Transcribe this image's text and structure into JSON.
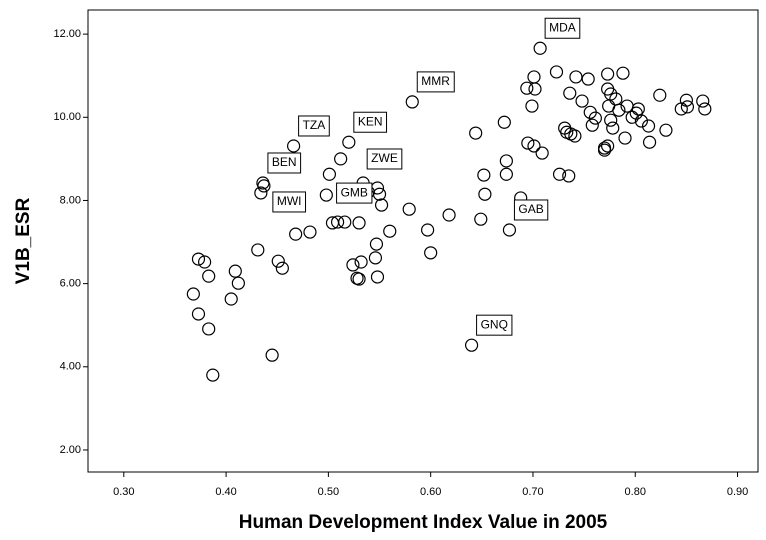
{
  "chart_data": {
    "type": "scatter",
    "xlabel": "Human Development Index Value in 2005",
    "ylabel": "V1B_ESR",
    "color": "#000000",
    "xlim": [
      0.265,
      0.92
    ],
    "ylim": [
      1.47,
      12.58
    ],
    "xticks": [
      {
        "value": 0.3,
        "label": "0.30"
      },
      {
        "value": 0.4,
        "label": "0.40"
      },
      {
        "value": 0.5,
        "label": "0.50"
      },
      {
        "value": 0.6,
        "label": "0.60"
      },
      {
        "value": 0.7,
        "label": "0.70"
      },
      {
        "value": 0.8,
        "label": "0.80"
      },
      {
        "value": 0.9,
        "label": "0.90"
      }
    ],
    "yticks": [
      {
        "value": 2,
        "label": "2.00"
      },
      {
        "value": 4,
        "label": "4.00"
      },
      {
        "value": 6,
        "label": "6.00"
      },
      {
        "value": 8,
        "label": "8.00"
      },
      {
        "value": 10,
        "label": "10.00"
      },
      {
        "value": 12,
        "label": "12.00"
      }
    ],
    "x": [
      0.373,
      0.379,
      0.383,
      0.368,
      0.373,
      0.383,
      0.387,
      0.409,
      0.412,
      0.405,
      0.431,
      0.451,
      0.455,
      0.445,
      0.436,
      0.437,
      0.434,
      0.468,
      0.482,
      0.466,
      0.52,
      0.512,
      0.501,
      0.498,
      0.504,
      0.509,
      0.516,
      0.53,
      0.534,
      0.539,
      0.548,
      0.55,
      0.552,
      0.56,
      0.524,
      0.532,
      0.528,
      0.53,
      0.547,
      0.546,
      0.548,
      0.579,
      0.582,
      0.597,
      0.6,
      0.618,
      0.644,
      0.652,
      0.653,
      0.649,
      0.64,
      0.672,
      0.674,
      0.674,
      0.677,
      0.688,
      0.707,
      0.694,
      0.701,
      0.702,
      0.699,
      0.695,
      0.701,
      0.709,
      0.723,
      0.726,
      0.735,
      0.731,
      0.733,
      0.737,
      0.741,
      0.736,
      0.742,
      0.748,
      0.754,
      0.756,
      0.758,
      0.761,
      0.77,
      0.77,
      0.773,
      0.774,
      0.776,
      0.776,
      0.778,
      0.773,
      0.781,
      0.784,
      0.788,
      0.79,
      0.792,
      0.797,
      0.801,
      0.803,
      0.806,
      0.813,
      0.814,
      0.824,
      0.83,
      0.845,
      0.85,
      0.851,
      0.866,
      0.868,
      0.773
    ],
    "y": [
      6.59,
      6.52,
      6.18,
      5.75,
      5.27,
      4.91,
      3.8,
      6.3,
      6.01,
      5.63,
      6.81,
      6.54,
      6.37,
      4.28,
      8.42,
      8.35,
      8.18,
      7.19,
      7.24,
      9.31,
      9.4,
      9.0,
      8.63,
      8.13,
      7.46,
      7.48,
      7.48,
      7.46,
      8.42,
      8.2,
      8.3,
      8.15,
      7.89,
      7.26,
      6.45,
      6.52,
      6.13,
      6.11,
      6.95,
      6.62,
      6.16,
      7.79,
      10.37,
      7.29,
      6.74,
      7.65,
      9.62,
      8.61,
      8.15,
      7.55,
      4.52,
      9.88,
      8.95,
      8.63,
      7.29,
      8.06,
      11.66,
      10.7,
      10.97,
      10.68,
      10.27,
      9.38,
      9.31,
      9.14,
      11.09,
      8.63,
      8.59,
      9.74,
      9.64,
      9.6,
      9.55,
      10.58,
      10.97,
      10.39,
      10.92,
      10.12,
      9.81,
      9.98,
      9.26,
      9.21,
      11.04,
      10.27,
      10.56,
      9.93,
      9.74,
      10.68,
      10.44,
      10.17,
      11.06,
      9.5,
      10.27,
      10.0,
      10.1,
      10.2,
      9.91,
      9.79,
      9.4,
      10.53,
      9.69,
      10.2,
      10.41,
      10.25,
      10.39,
      10.2,
      9.31
    ],
    "point_labels": [
      null,
      null,
      null,
      null,
      null,
      null,
      null,
      null,
      null,
      null,
      null,
      null,
      null,
      null,
      "BEN",
      null,
      "MWI",
      null,
      null,
      "TZA",
      "KEN",
      null,
      null,
      null,
      null,
      "GMB",
      null,
      null,
      "ZWE",
      null,
      null,
      null,
      null,
      null,
      null,
      null,
      null,
      null,
      null,
      null,
      null,
      null,
      "MMR",
      null,
      null,
      null,
      null,
      null,
      null,
      null,
      "GNQ",
      null,
      null,
      null,
      "GAB",
      null,
      "MDA",
      null,
      null,
      null,
      null,
      null,
      null,
      null,
      null,
      null,
      null,
      null,
      null,
      null,
      null,
      null,
      null,
      null,
      null,
      null,
      null,
      null,
      null,
      null,
      null,
      null,
      null,
      null,
      null,
      null,
      null,
      null,
      null,
      null,
      null,
      null,
      null,
      null,
      null,
      null,
      null,
      null,
      null,
      null,
      null,
      null,
      null,
      null,
      null
    ]
  }
}
